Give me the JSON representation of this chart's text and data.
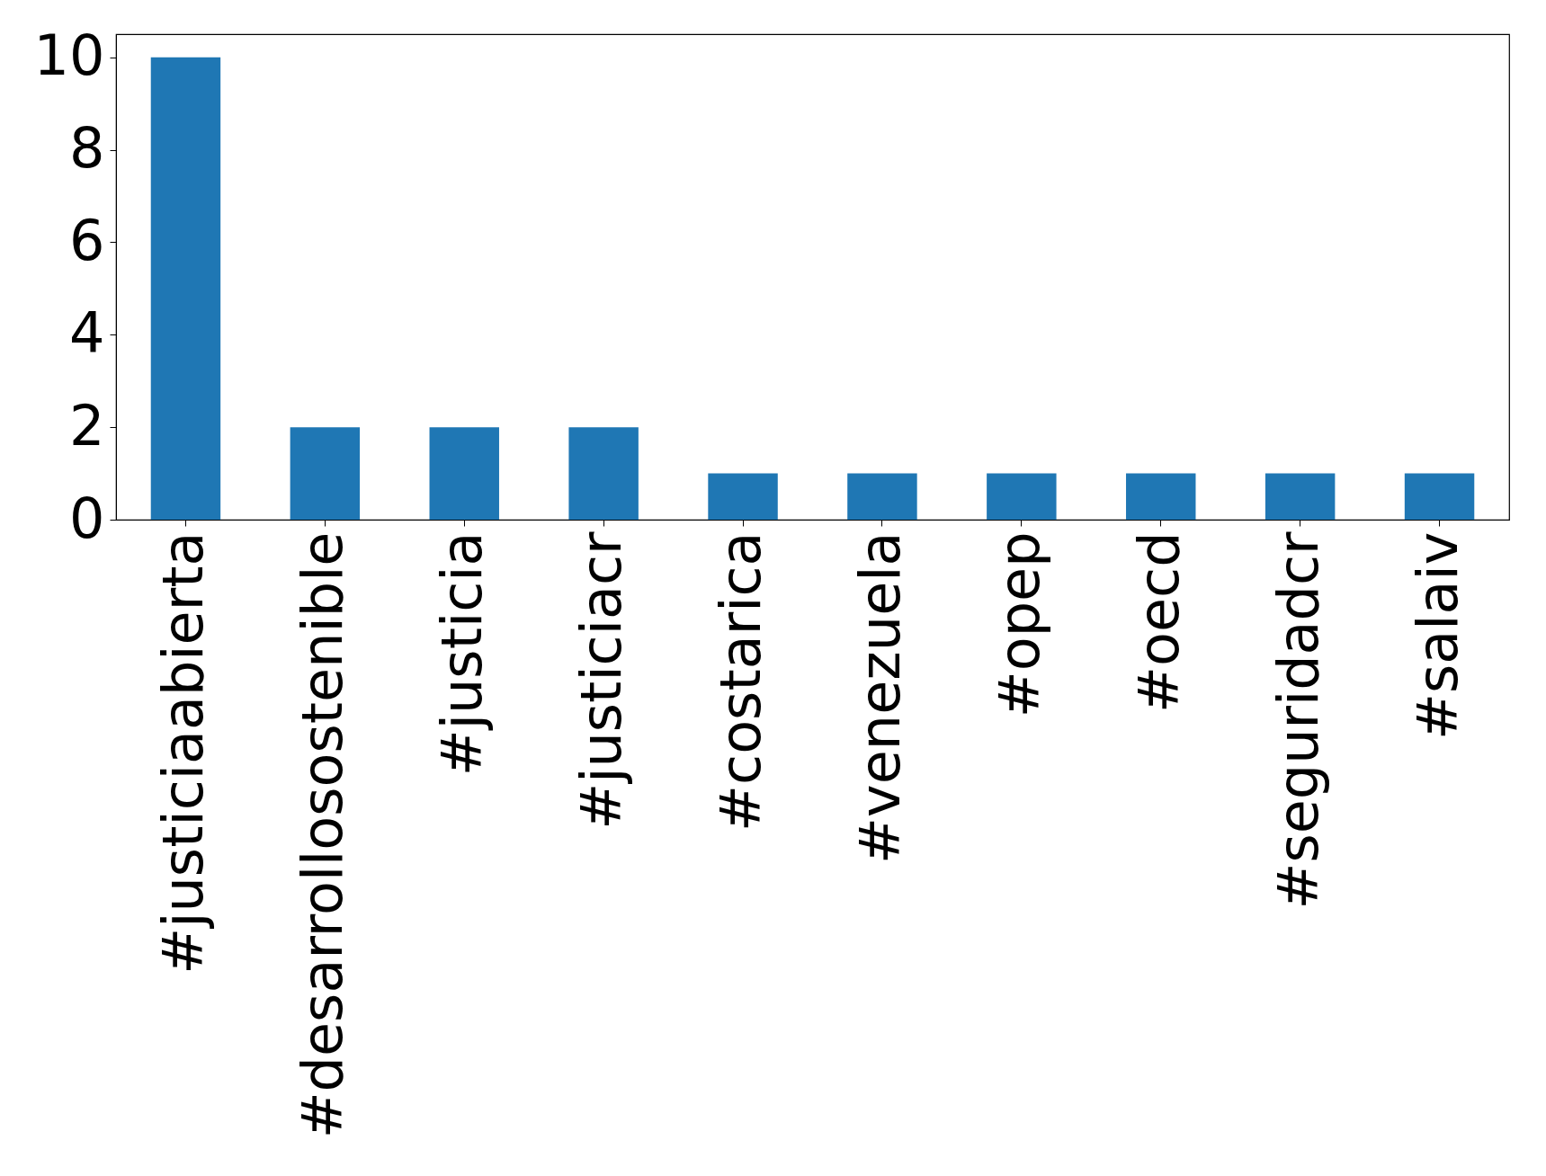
{
  "chart_data": {
    "type": "bar",
    "categories": [
      "#justiciaabierta",
      "#desarrollosostenible",
      "#justicia",
      "#justiciacr",
      "#costarica",
      "#venezuela",
      "#opep",
      "#oecd",
      "#seguridadcr",
      "#salaiv"
    ],
    "values": [
      10,
      2,
      2,
      2,
      1,
      1,
      1,
      1,
      1,
      1
    ],
    "color": "#1f77b4",
    "ylim": [
      0,
      10.5
    ],
    "yticks": [
      0,
      2,
      4,
      6,
      8,
      10
    ]
  }
}
